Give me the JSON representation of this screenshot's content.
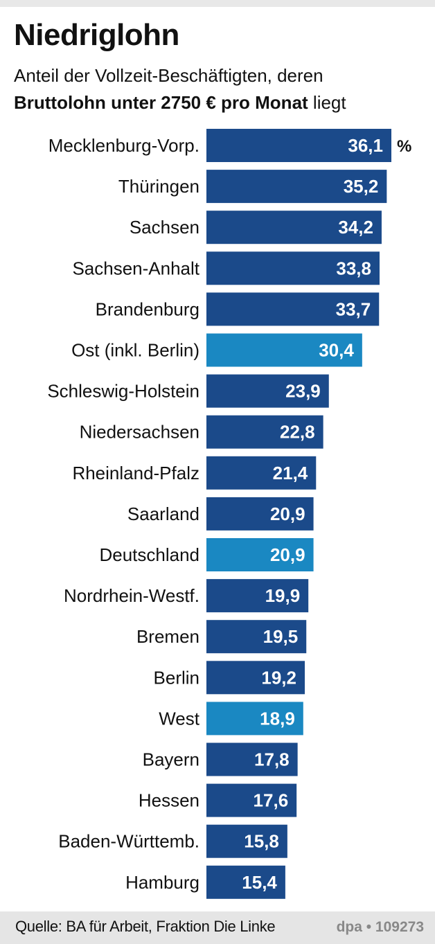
{
  "title": "Niedriglohn",
  "subtitle_line1": "Anteil der Vollzeit-Beschäftigten, deren",
  "subtitle_bold": "Bruttolohn unter 2750 € pro Monat",
  "subtitle_tail": " liegt",
  "source": "Quelle: BA für Arbeit, Fraktion Die Linke",
  "credit": "dpa • 109273",
  "colors": {
    "state": "#1b4a8a",
    "aggregate": "#1a88c2"
  },
  "chart_data": {
    "type": "bar",
    "orientation": "horizontal",
    "unit": "%",
    "xlim": [
      0,
      36.1
    ],
    "categories": [
      "Mecklenburg-Vorp.",
      "Thüringen",
      "Sachsen",
      "Sachsen-Anhalt",
      "Brandenburg",
      "Ost (inkl. Berlin)",
      "Schleswig-Holstein",
      "Niedersachsen",
      "Rheinland-Pfalz",
      "Saarland",
      "Deutschland",
      "Nordrhein-Westf.",
      "Bremen",
      "Berlin",
      "West",
      "Bayern",
      "Hessen",
      "Baden-Württemb.",
      "Hamburg"
    ],
    "values": [
      36.1,
      35.2,
      34.2,
      33.8,
      33.7,
      30.4,
      23.9,
      22.8,
      21.4,
      20.9,
      20.9,
      19.9,
      19.5,
      19.2,
      18.9,
      17.8,
      17.6,
      15.8,
      15.4
    ],
    "labels": [
      "36,1",
      "35,2",
      "34,2",
      "33,8",
      "33,7",
      "30,4",
      "23,9",
      "22,8",
      "21,4",
      "20,9",
      "20,9",
      "19,9",
      "19,5",
      "19,2",
      "18,9",
      "17,8",
      "17,6",
      "15,8",
      "15,4"
    ],
    "aggregate": [
      false,
      false,
      false,
      false,
      false,
      true,
      false,
      false,
      false,
      false,
      true,
      false,
      false,
      false,
      true,
      false,
      false,
      false,
      false
    ]
  }
}
